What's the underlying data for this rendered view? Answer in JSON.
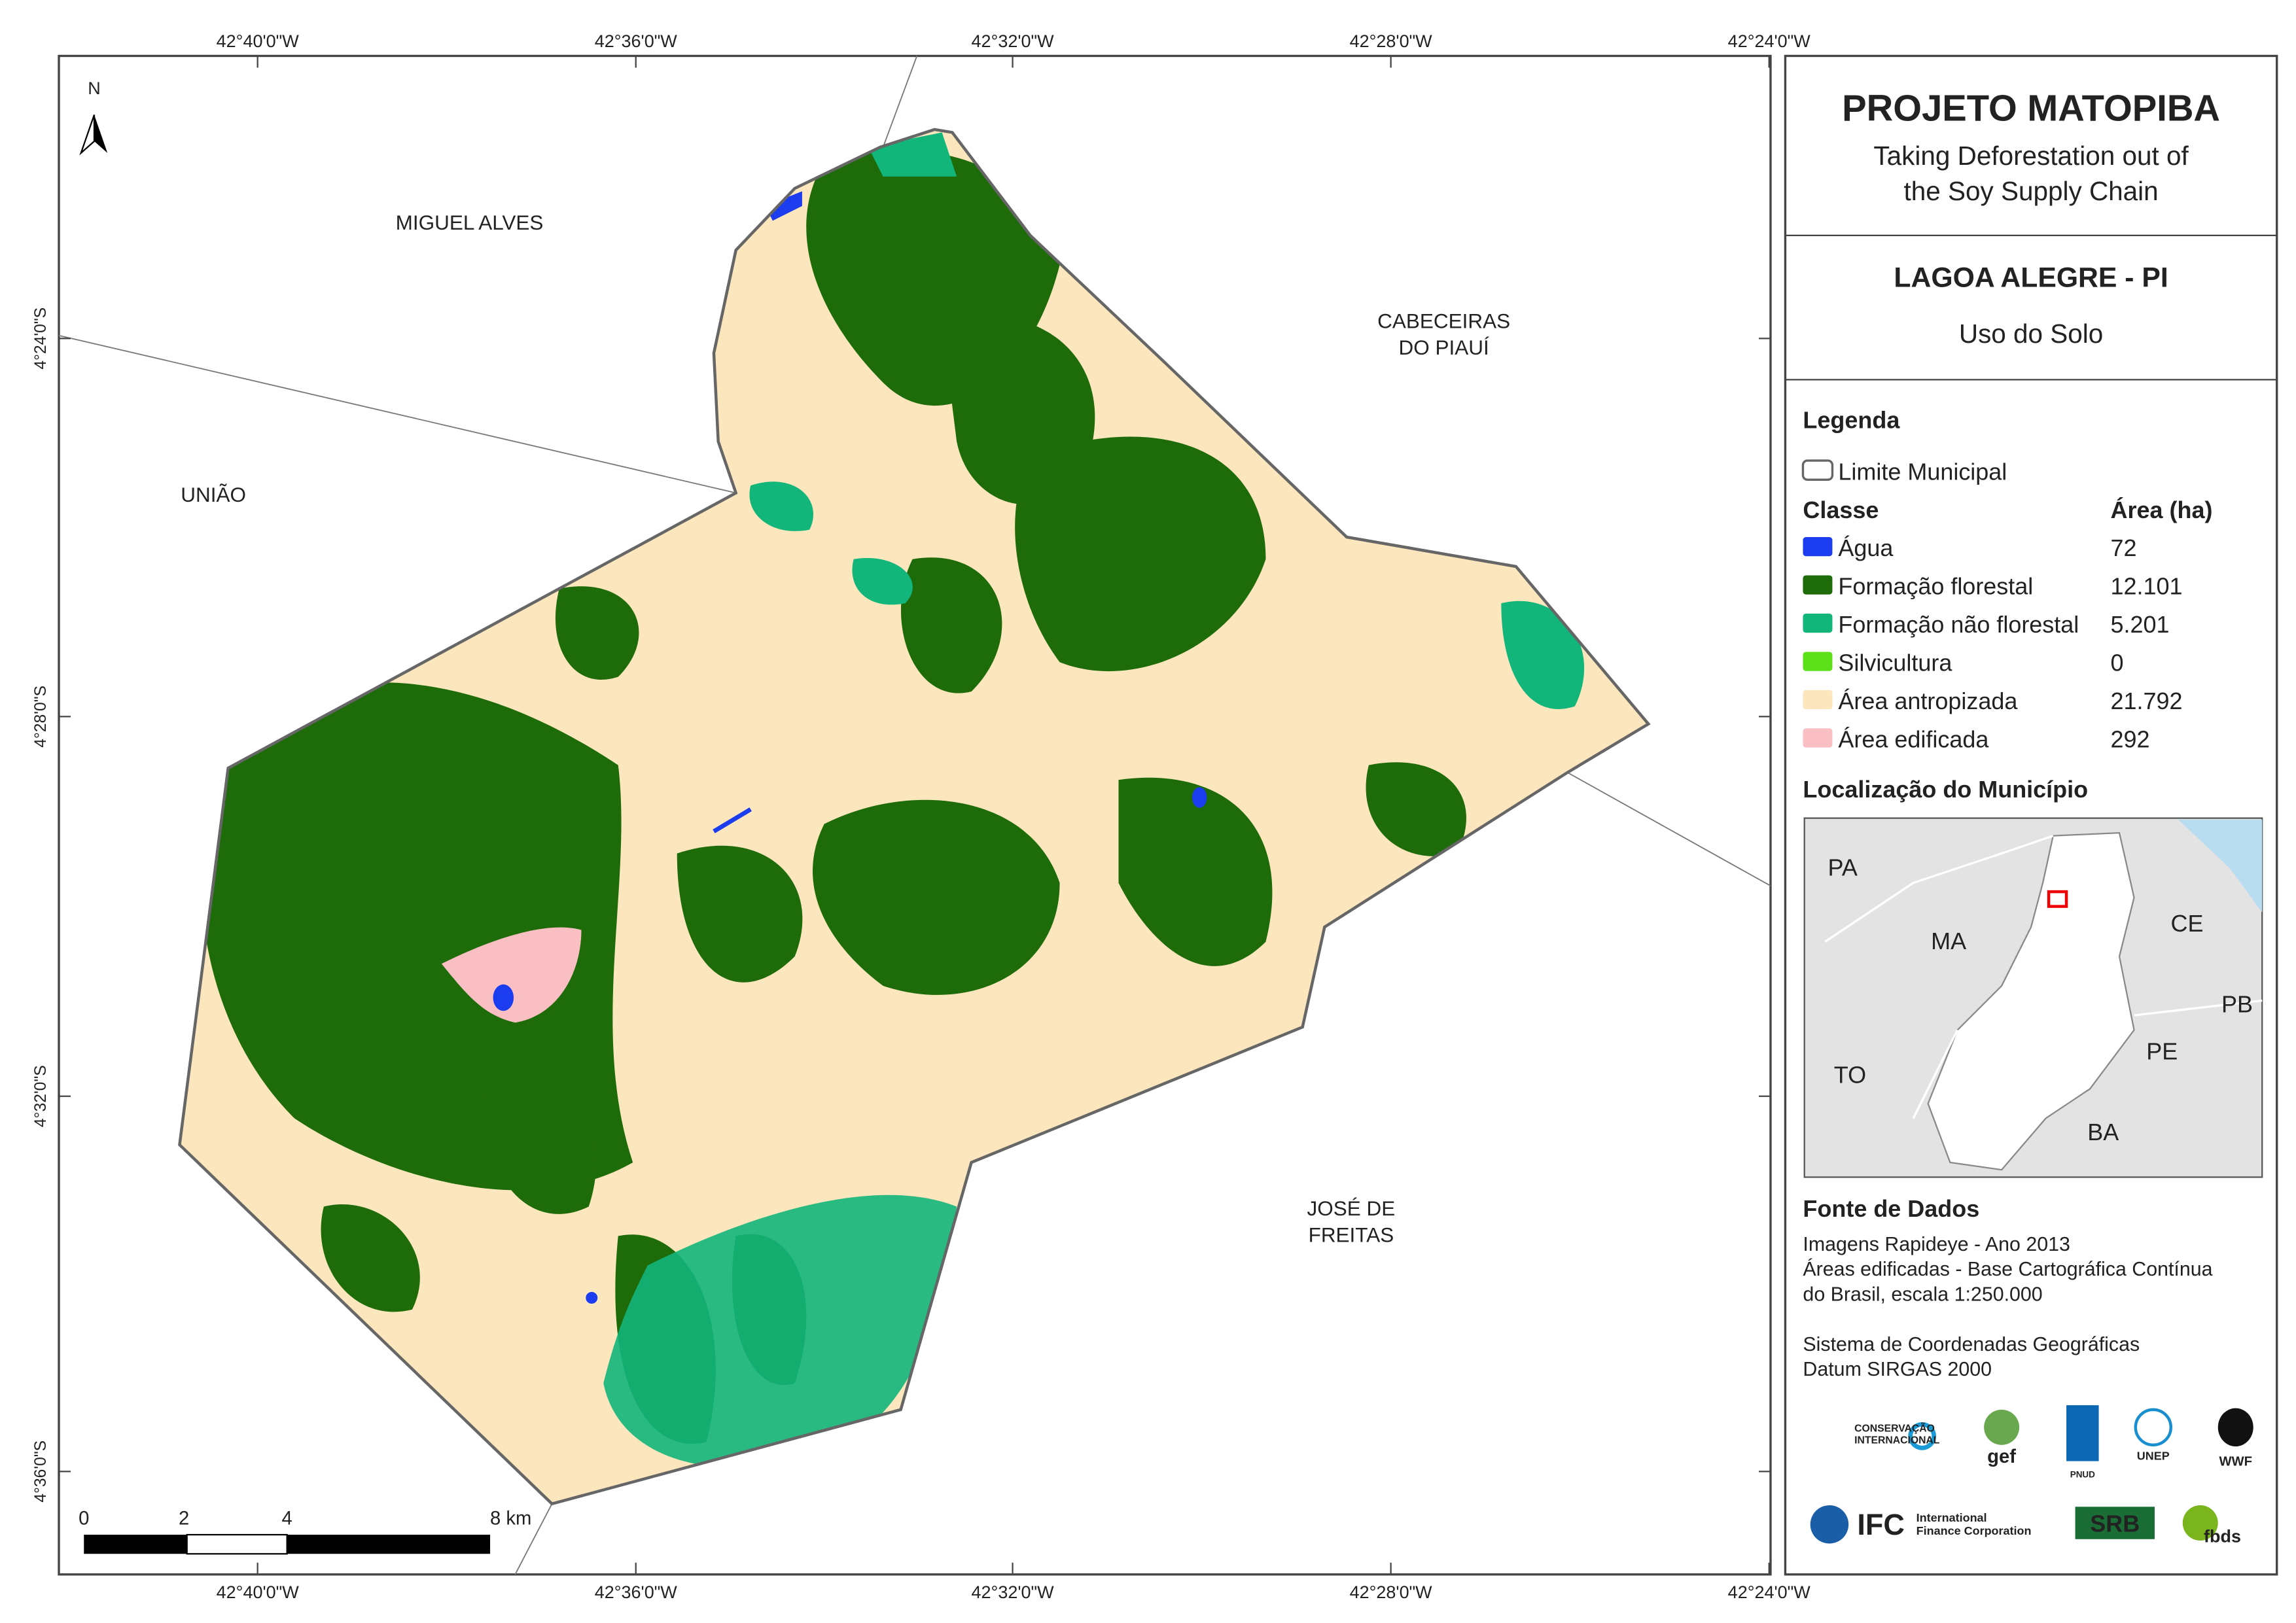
{
  "header": {
    "title": "PROJETO MATOPIBA",
    "subtitle": [
      "Taking Deforestation out of",
      "the Soy Supply Chain"
    ]
  },
  "municipality": {
    "name": "LAGOA ALEGRE - PI",
    "theme": "Uso do Solo"
  },
  "map": {
    "longitudes": [
      "42°40'0\"W",
      "42°36'0\"W",
      "42°32'0\"W",
      "42°28'0\"W",
      "42°24'0\"W"
    ],
    "latitudes": [
      "4°24'0\"S",
      "4°28'0\"S",
      "4°32'0\"S",
      "4°36'0\"S"
    ],
    "north": "N",
    "places": [
      {
        "lines": [
          "MIGUEL ALVES"
        ]
      },
      {
        "lines": [
          "UNIÃO"
        ]
      },
      {
        "lines": [
          "CABECEIRAS",
          "DO PIAUÍ"
        ]
      },
      {
        "lines": [
          "JOSÉ DE",
          "FREITAS"
        ]
      }
    ],
    "scale": [
      "0",
      "2",
      "4",
      "8 km"
    ]
  },
  "legend": {
    "title": "Legenda",
    "boundary": "Limite Municipal",
    "class_header": "Classe",
    "area_header": "Área (ha)",
    "classes": [
      {
        "name": "Água",
        "area": "72",
        "color": "#1c3cf0"
      },
      {
        "name": "Formação florestal",
        "area": "12.101",
        "color": "#1e6b0a"
      },
      {
        "name": "Formação não florestal",
        "area": "5.201",
        "color": "#12b57a"
      },
      {
        "name": "Silvicultura",
        "area": "0",
        "color": "#5ce01a"
      },
      {
        "name": "Área antropizada",
        "area": "21.792",
        "color": "#fbe6bd"
      },
      {
        "name": "Área edificada",
        "area": "292",
        "color": "#f9bfc3"
      }
    ]
  },
  "location": {
    "title": "Localização do Município",
    "states": [
      "PA",
      "MA",
      "CE",
      "PB",
      "TO",
      "PE",
      "BA"
    ]
  },
  "sources": {
    "title": "Fonte de Dados",
    "lines": [
      "Imagens Rapideye - Ano 2013",
      "Áreas edificadas - Base Cartográfica Contínua",
      "do Brasil, escala 1:250.000",
      "",
      "Sistema de Coordenadas Geográficas",
      "Datum SIRGAS 2000"
    ]
  },
  "logos": [
    "CONSERVAÇÃO",
    "INTERNACIONAL",
    "gef",
    "PNUD",
    "UNEP",
    "WWF",
    "IFC",
    "International",
    "Finance Corporation",
    "SRB",
    "fbds"
  ]
}
